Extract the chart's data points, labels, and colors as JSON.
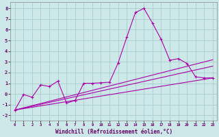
{
  "xlabel": "Windchill (Refroidissement éolien,°C)",
  "background_color": "#cce8e8",
  "grid_color": "#aacccc",
  "line_color": "#aa00aa",
  "xlim": [
    -0.5,
    23.5
  ],
  "ylim": [
    -2.5,
    8.6
  ],
  "xticks": [
    0,
    1,
    2,
    3,
    4,
    5,
    6,
    7,
    8,
    9,
    10,
    11,
    12,
    13,
    14,
    15,
    16,
    17,
    18,
    19,
    20,
    21,
    22,
    23
  ],
  "yticks": [
    -2,
    -1,
    0,
    1,
    2,
    3,
    4,
    5,
    6,
    7,
    8
  ],
  "series_main_x": [
    0,
    1,
    2,
    3,
    4,
    5,
    6,
    7,
    8,
    9,
    10,
    11,
    12,
    13,
    14,
    15,
    16,
    17,
    18,
    19,
    20,
    21,
    22,
    23
  ],
  "series_main_y": [
    -1.5,
    -0.05,
    -0.3,
    0.85,
    0.7,
    1.2,
    -0.85,
    -0.6,
    1.0,
    1.0,
    1.05,
    1.1,
    2.9,
    5.3,
    7.6,
    8.0,
    6.6,
    5.1,
    3.15,
    3.3,
    2.85,
    1.6,
    1.5,
    1.5
  ],
  "line1_x": [
    0,
    23
  ],
  "line1_y": [
    -1.5,
    1.5
  ],
  "line2_x": [
    0,
    23
  ],
  "line2_y": [
    -1.5,
    2.6
  ],
  "line3_x": [
    0,
    23
  ],
  "line3_y": [
    -1.5,
    3.2
  ]
}
